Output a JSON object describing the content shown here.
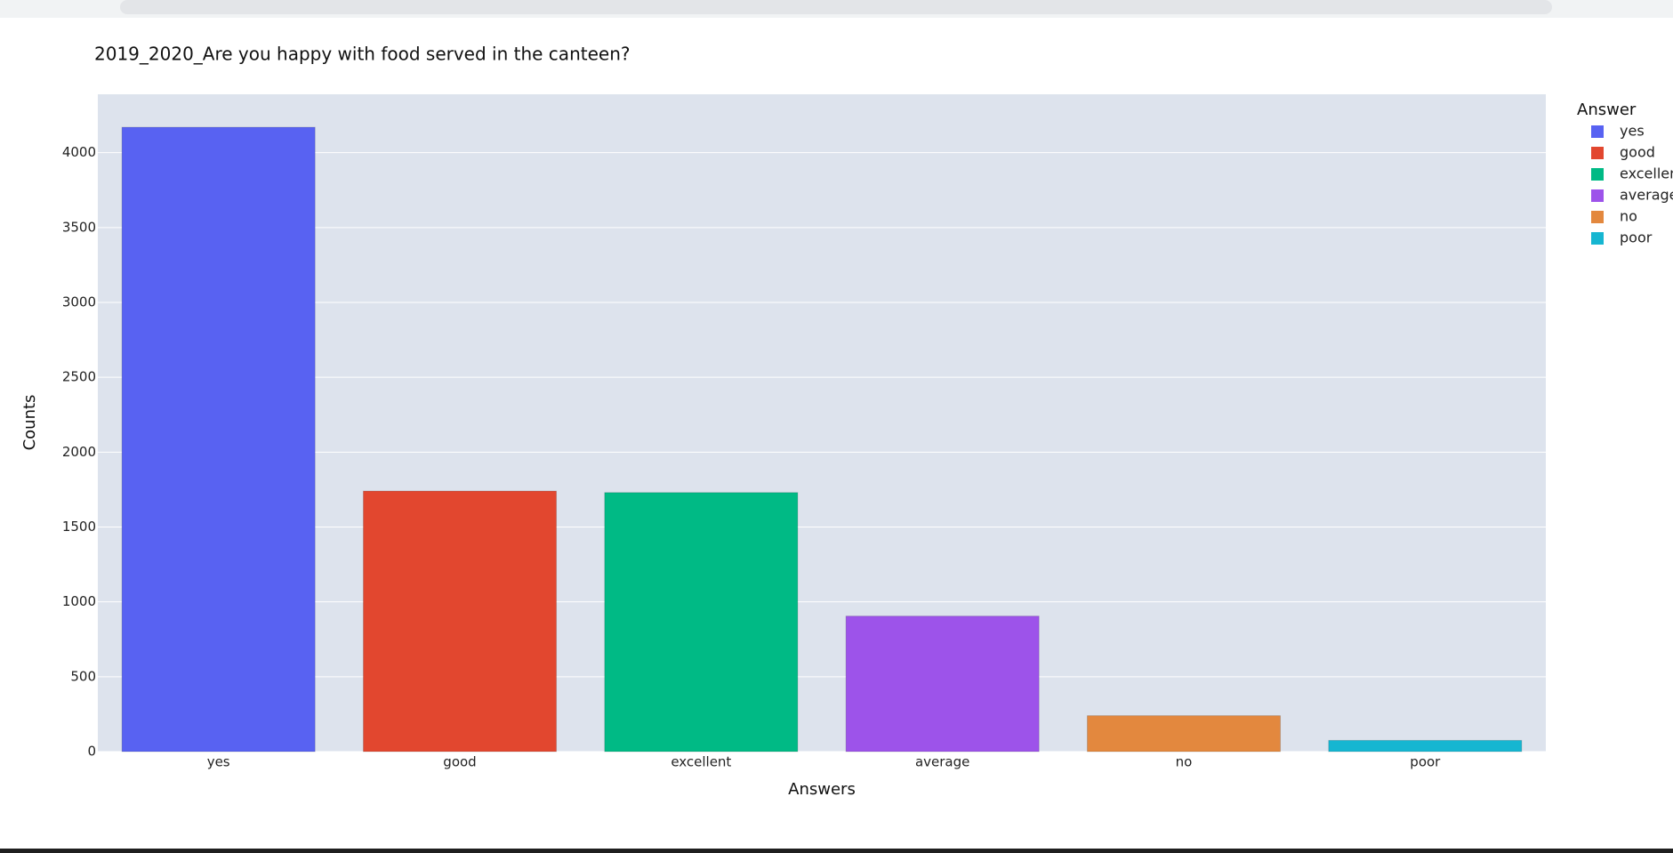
{
  "chart_data": {
    "type": "bar",
    "title": "2019_2020_Are you happy with food served in the canteen?",
    "x_label": "Answers",
    "y_label": "Counts",
    "legend_title": "Answer",
    "categories": [
      "yes",
      "good",
      "excellent",
      "average",
      "no",
      "poor"
    ],
    "values": [
      4170,
      1740,
      1730,
      905,
      240,
      75
    ],
    "colors": [
      "#5862f2",
      "#e2472f",
      "#00ba85",
      "#9d53ea",
      "#e3883e",
      "#16b6d1"
    ],
    "ylim": [
      0,
      4390
    ],
    "yticks": [
      0,
      500,
      1000,
      1500,
      2000,
      2500,
      3000,
      3500,
      4000
    ],
    "grid": true
  }
}
